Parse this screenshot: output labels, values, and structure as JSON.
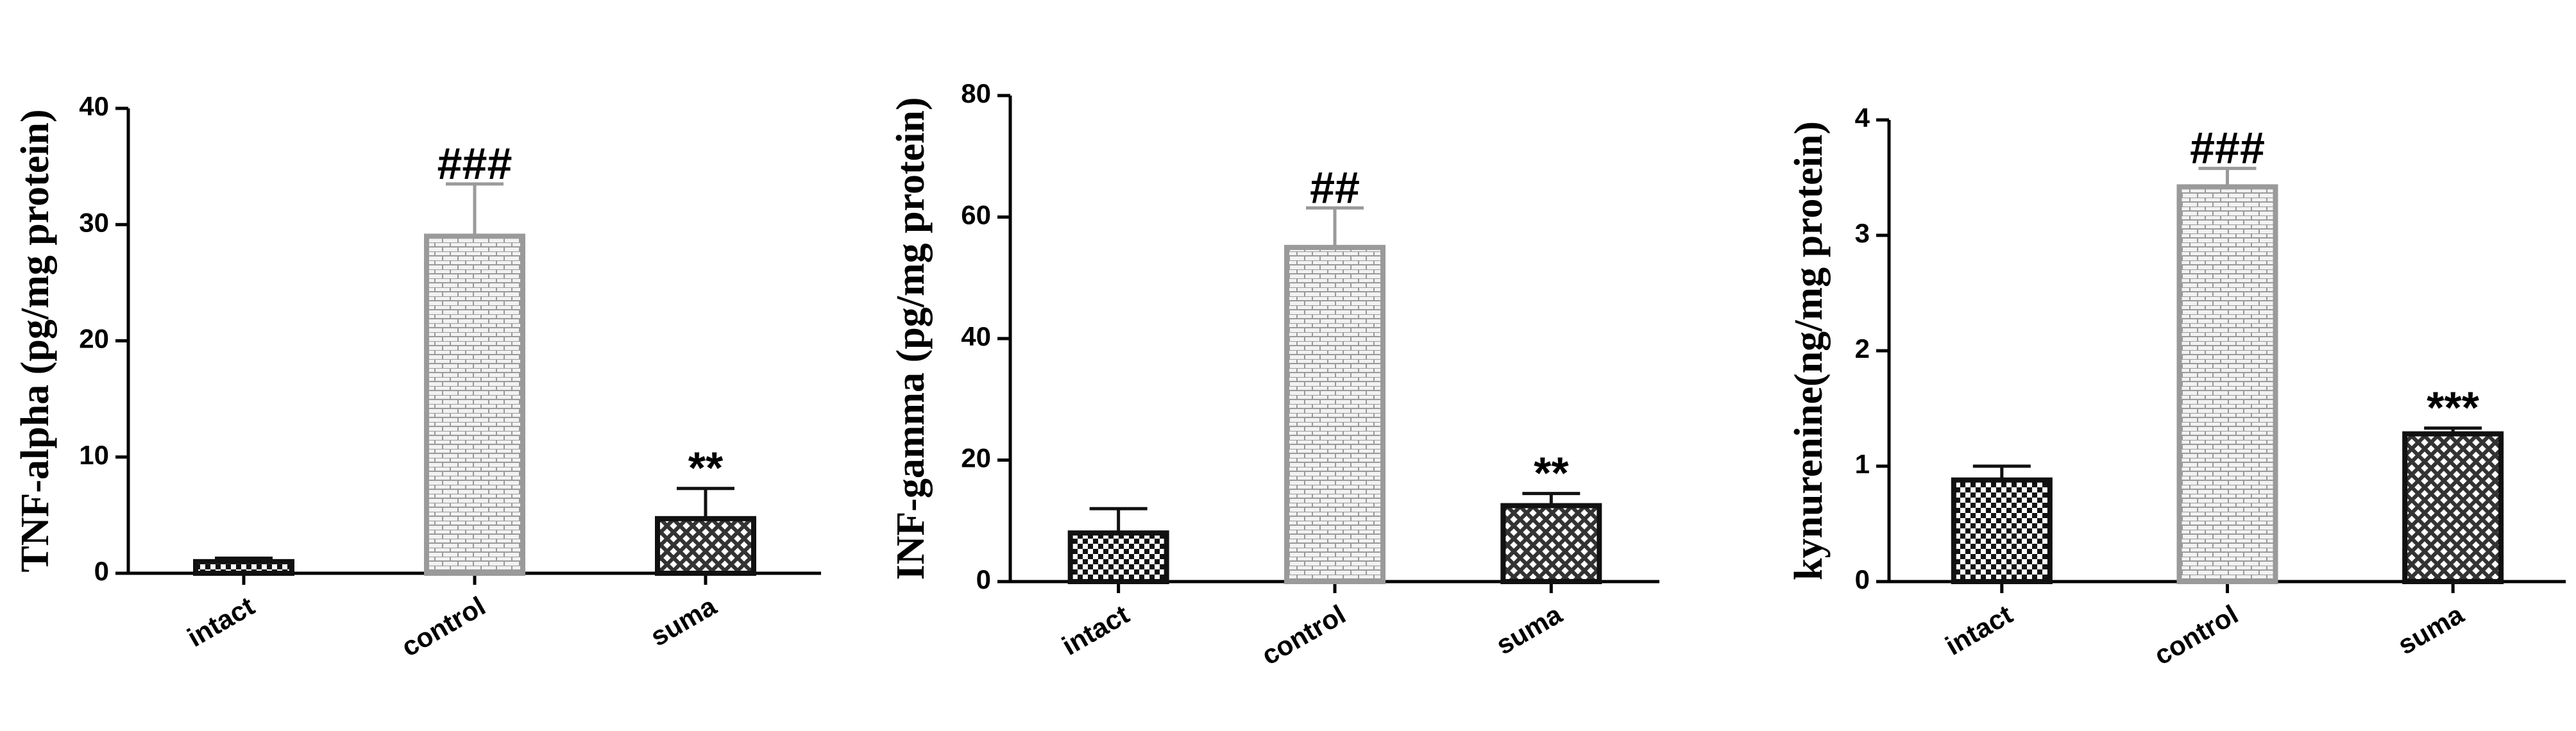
{
  "chart_data": [
    {
      "type": "bar",
      "y_label": "TNF-alpha (pg/mg protein)",
      "categories": [
        "intact",
        "control",
        "suma"
      ],
      "values": [
        1,
        29,
        4.7
      ],
      "errors": [
        0.3,
        4.5,
        2.6
      ],
      "annotations": [
        null,
        "###",
        "**"
      ],
      "ylim": [
        0,
        40
      ],
      "yticks": [
        0,
        10,
        20,
        30,
        40
      ]
    },
    {
      "type": "bar",
      "y_label": "INF-gamma (pg/mg protein)",
      "categories": [
        "intact",
        "control",
        "suma"
      ],
      "values": [
        8,
        55,
        12.5
      ],
      "errors": [
        4,
        6.5,
        2
      ],
      "annotations": [
        null,
        "##",
        "**"
      ],
      "ylim": [
        0,
        80
      ],
      "yticks": [
        0,
        20,
        40,
        60,
        80
      ]
    },
    {
      "type": "bar",
      "y_label": "kynurenine(ng/mg protein)",
      "categories": [
        "intact",
        "control",
        "suma"
      ],
      "values": [
        0.88,
        3.42,
        1.28
      ],
      "errors": [
        0.12,
        0.16,
        0.05
      ],
      "annotations": [
        null,
        "###",
        "***"
      ],
      "ylim": [
        0,
        4
      ],
      "yticks": [
        0,
        1,
        2,
        3,
        4
      ]
    }
  ]
}
